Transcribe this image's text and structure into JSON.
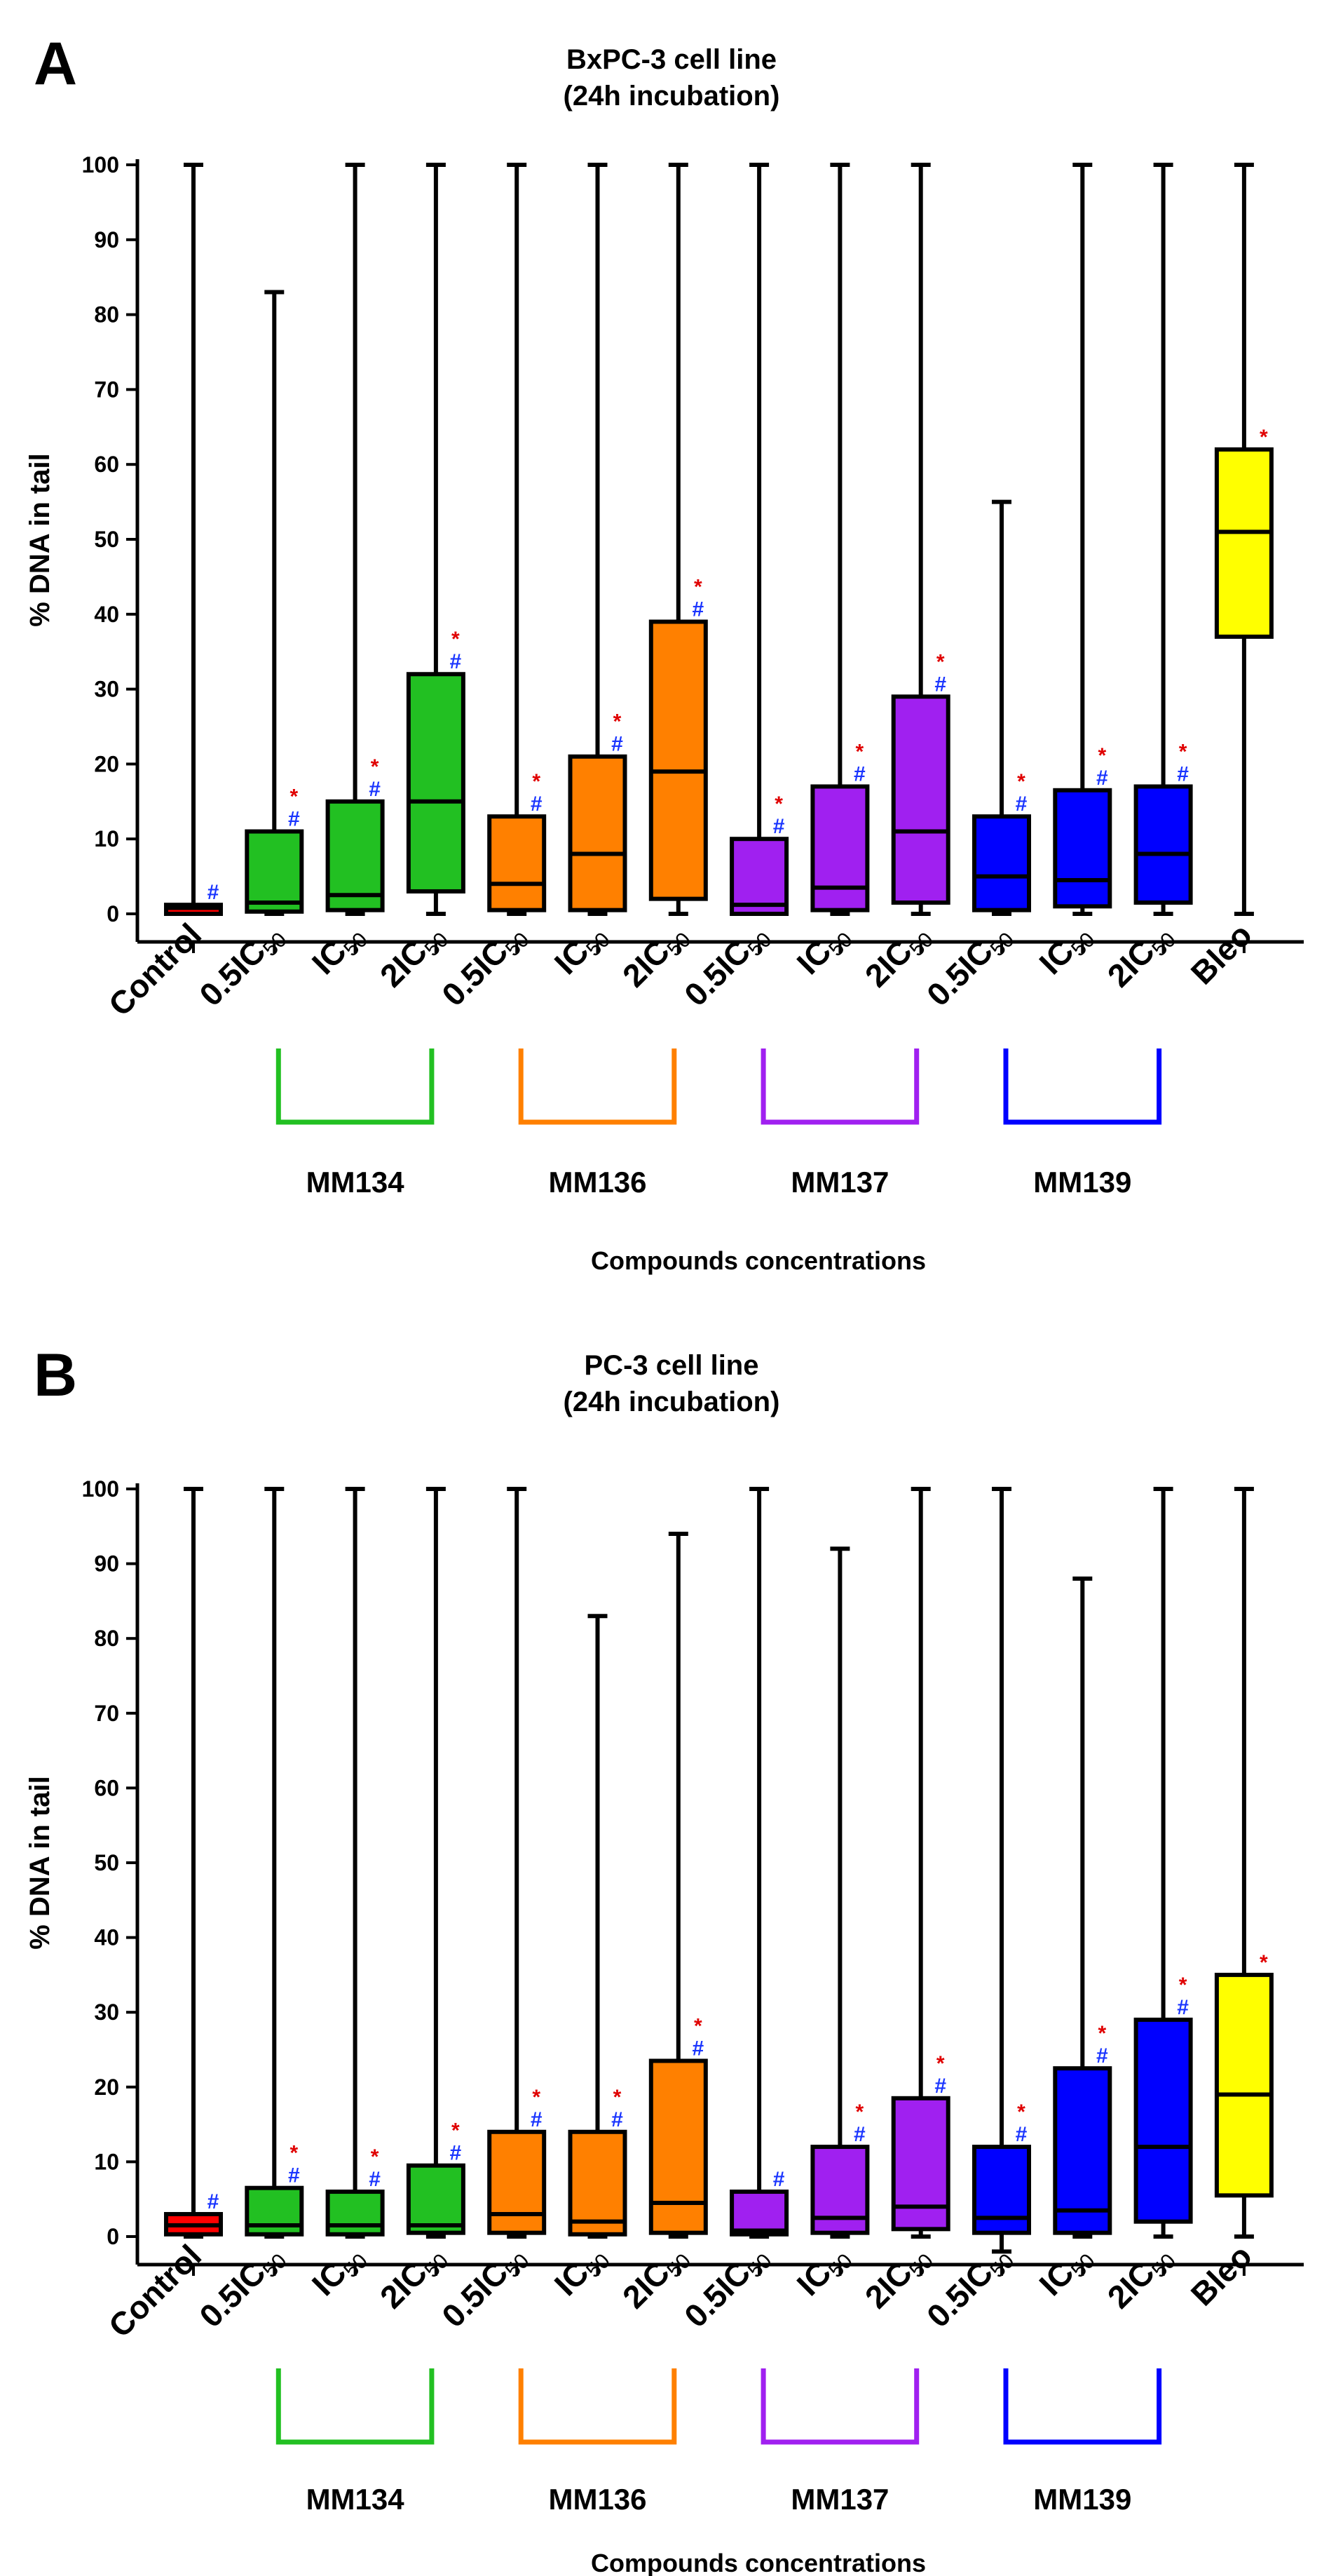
{
  "chart_data": [
    {
      "panel": "A",
      "type": "boxplot",
      "title": "BxPC-3 cell line",
      "subtitle": "(24h incubation)",
      "ylabel": "% DNA in tail",
      "xlabel": "Compounds concentrations",
      "ylim": [
        0,
        100
      ],
      "yticks": [
        0,
        10,
        20,
        30,
        40,
        50,
        60,
        70,
        80,
        90,
        100
      ],
      "groups": [
        {
          "label": "MM134",
          "color": "#22c022",
          "first": 1,
          "last": 3
        },
        {
          "label": "MM136",
          "color": "#ff8000",
          "first": 4,
          "last": 6
        },
        {
          "label": "MM137",
          "color": "#a020f0",
          "first": 7,
          "last": 9
        },
        {
          "label": "MM139",
          "color": "#0000ff",
          "first": 10,
          "last": 12
        }
      ],
      "boxes": [
        {
          "label": "Control",
          "sub": "",
          "color": "#ff0000",
          "min": 0,
          "q1": 0,
          "median": 0.8,
          "q3": 1.2,
          "max": 100,
          "star": false,
          "hash": true
        },
        {
          "label": "0.5IC",
          "sub": "50",
          "color": "#22c022",
          "min": 0,
          "q1": 0.3,
          "median": 1.5,
          "q3": 11,
          "max": 83,
          "star": true,
          "hash": true
        },
        {
          "label": "IC",
          "sub": "50",
          "color": "#22c022",
          "min": 0,
          "q1": 0.5,
          "median": 2.5,
          "q3": 15,
          "max": 100,
          "star": true,
          "hash": true
        },
        {
          "label": "2IC",
          "sub": "50",
          "color": "#22c022",
          "min": 0,
          "q1": 3,
          "median": 15,
          "q3": 32,
          "max": 100,
          "star": true,
          "hash": true
        },
        {
          "label": "0.5IC",
          "sub": "50",
          "color": "#ff8000",
          "min": 0,
          "q1": 0.5,
          "median": 4,
          "q3": 13,
          "max": 100,
          "star": true,
          "hash": true
        },
        {
          "label": "IC",
          "sub": "50",
          "color": "#ff8000",
          "min": 0,
          "q1": 0.5,
          "median": 8,
          "q3": 21,
          "max": 100,
          "star": true,
          "hash": true
        },
        {
          "label": "2IC",
          "sub": "50",
          "color": "#ff8000",
          "min": 0,
          "q1": 2,
          "median": 19,
          "q3": 39,
          "max": 100,
          "star": true,
          "hash": true
        },
        {
          "label": "0.5IC",
          "sub": "50",
          "color": "#a020f0",
          "min": 0,
          "q1": 0,
          "median": 1.2,
          "q3": 10,
          "max": 100,
          "star": true,
          "hash": true
        },
        {
          "label": "IC",
          "sub": "50",
          "color": "#a020f0",
          "min": 0,
          "q1": 0.5,
          "median": 3.5,
          "q3": 17,
          "max": 100,
          "star": true,
          "hash": true
        },
        {
          "label": "2IC",
          "sub": "50",
          "color": "#a020f0",
          "min": 0,
          "q1": 1.5,
          "median": 11,
          "q3": 29,
          "max": 100,
          "star": true,
          "hash": true
        },
        {
          "label": "0.5IC",
          "sub": "50",
          "color": "#0000ff",
          "min": 0,
          "q1": 0.5,
          "median": 5,
          "q3": 13,
          "max": 55,
          "star": true,
          "hash": true
        },
        {
          "label": "IC",
          "sub": "50",
          "color": "#0000ff",
          "min": 0,
          "q1": 1,
          "median": 4.5,
          "q3": 16.5,
          "max": 100,
          "star": true,
          "hash": true
        },
        {
          "label": "2IC",
          "sub": "50",
          "color": "#0000ff",
          "min": 0,
          "q1": 1.5,
          "median": 8,
          "q3": 17,
          "max": 100,
          "star": true,
          "hash": true
        },
        {
          "label": "Bleo",
          "sub": "",
          "color": "#ffff00",
          "min": 0,
          "q1": 37,
          "median": 51,
          "q3": 62,
          "max": 100,
          "star": true,
          "hash": false
        }
      ]
    },
    {
      "panel": "B",
      "type": "boxplot",
      "title": "PC-3 cell line",
      "subtitle": "(24h incubation)",
      "ylabel": "% DNA in tail",
      "xlabel": "Compounds concentrations",
      "ylim": [
        0,
        100
      ],
      "yticks": [
        0,
        10,
        20,
        30,
        40,
        50,
        60,
        70,
        80,
        90,
        100
      ],
      "groups": [
        {
          "label": "MM134",
          "color": "#22c022",
          "first": 1,
          "last": 3
        },
        {
          "label": "MM136",
          "color": "#ff8000",
          "first": 4,
          "last": 6
        },
        {
          "label": "MM137",
          "color": "#a020f0",
          "first": 7,
          "last": 9
        },
        {
          "label": "MM139",
          "color": "#0000ff",
          "first": 10,
          "last": 12
        }
      ],
      "boxes": [
        {
          "label": "Control",
          "sub": "",
          "color": "#ff0000",
          "min": 0,
          "q1": 0.3,
          "median": 1.5,
          "q3": 3,
          "max": 100,
          "star": false,
          "hash": true
        },
        {
          "label": "0.5IC",
          "sub": "50",
          "color": "#22c022",
          "min": 0,
          "q1": 0.3,
          "median": 1.5,
          "q3": 6.5,
          "max": 100,
          "star": true,
          "hash": true
        },
        {
          "label": "IC",
          "sub": "50",
          "color": "#22c022",
          "min": 0,
          "q1": 0.3,
          "median": 1.5,
          "q3": 6,
          "max": 100,
          "star": true,
          "hash": true
        },
        {
          "label": "2IC",
          "sub": "50",
          "color": "#22c022",
          "min": 0,
          "q1": 0.5,
          "median": 1.5,
          "q3": 9.5,
          "max": 100,
          "star": true,
          "hash": true
        },
        {
          "label": "0.5IC",
          "sub": "50",
          "color": "#ff8000",
          "min": 0,
          "q1": 0.5,
          "median": 3,
          "q3": 14,
          "max": 100,
          "star": true,
          "hash": true
        },
        {
          "label": "IC",
          "sub": "50",
          "color": "#ff8000",
          "min": 0,
          "q1": 0.3,
          "median": 2,
          "q3": 14,
          "max": 83,
          "star": true,
          "hash": true
        },
        {
          "label": "2IC",
          "sub": "50",
          "color": "#ff8000",
          "min": 0,
          "q1": 0.5,
          "median": 4.5,
          "q3": 23.5,
          "max": 94,
          "star": true,
          "hash": true
        },
        {
          "label": "0.5IC",
          "sub": "50",
          "color": "#a020f0",
          "min": 0,
          "q1": 0.3,
          "median": 0.8,
          "q3": 6,
          "max": 100,
          "star": false,
          "hash": true
        },
        {
          "label": "IC",
          "sub": "50",
          "color": "#a020f0",
          "min": 0,
          "q1": 0.5,
          "median": 2.5,
          "q3": 12,
          "max": 92,
          "star": true,
          "hash": true
        },
        {
          "label": "2IC",
          "sub": "50",
          "color": "#a020f0",
          "min": 0,
          "q1": 1,
          "median": 4,
          "q3": 18.5,
          "max": 100,
          "star": true,
          "hash": true
        },
        {
          "label": "0.5IC",
          "sub": "50",
          "color": "#0000ff",
          "min": -2,
          "q1": 0.5,
          "median": 2.5,
          "q3": 12,
          "max": 100,
          "star": true,
          "hash": true
        },
        {
          "label": "IC",
          "sub": "50",
          "color": "#0000ff",
          "min": 0,
          "q1": 0.5,
          "median": 3.5,
          "q3": 22.5,
          "max": 88,
          "star": true,
          "hash": true
        },
        {
          "label": "2IC",
          "sub": "50",
          "color": "#0000ff",
          "min": 0,
          "q1": 2,
          "median": 12,
          "q3": 29,
          "max": 100,
          "star": true,
          "hash": true
        },
        {
          "label": "Bleo",
          "sub": "",
          "color": "#ffff00",
          "min": 0,
          "q1": 5.5,
          "median": 19,
          "q3": 35,
          "max": 100,
          "star": true,
          "hash": false
        }
      ]
    }
  ],
  "marks": {
    "star": "*",
    "hash": "#"
  },
  "colors": {
    "star": "#e00000",
    "hash": "#1a35ff",
    "axis": "#000000"
  }
}
